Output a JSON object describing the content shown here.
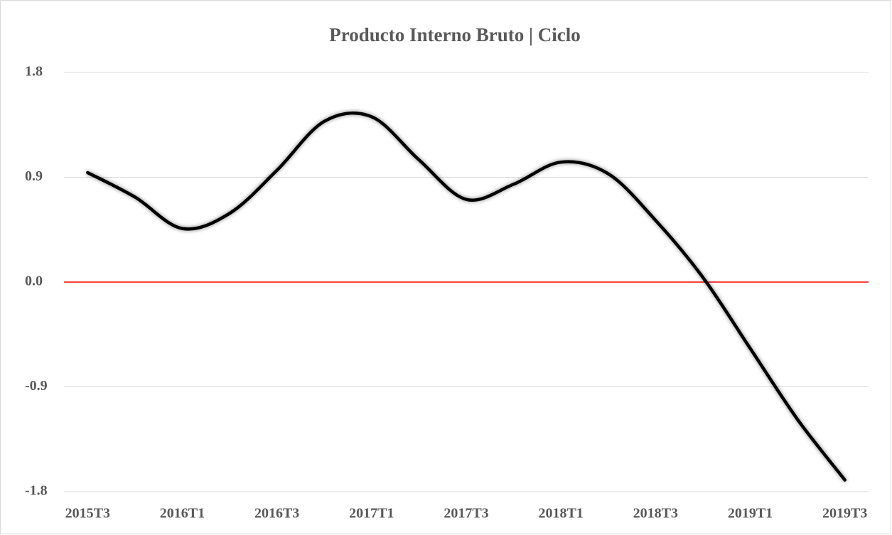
{
  "chart_data": {
    "type": "line",
    "title": "Producto Interno Bruto | Ciclo",
    "categories": [
      "2015T3",
      null,
      "2016T1",
      null,
      "2016T3",
      null,
      "2017T1",
      null,
      "2017T3",
      null,
      "2018T1",
      null,
      "2018T3",
      null,
      "2019T1",
      null,
      "2019T3"
    ],
    "series": [
      {
        "name": "Ciclo",
        "color": "#000000",
        "values": [
          0.94,
          0.73,
          0.46,
          0.59,
          0.96,
          1.38,
          1.42,
          1.05,
          0.71,
          0.84,
          1.03,
          0.93,
          0.53,
          0.04,
          -0.57,
          -1.18,
          -1.7
        ]
      }
    ],
    "ylim": [
      -1.8,
      1.8
    ],
    "yticks": [
      1.8,
      0.9,
      {
        "value": 0,
        "label": "0.0"
      },
      -0.9,
      -1.8
    ],
    "grid": true,
    "grid_color": "#d9d9d9",
    "zero_line_color": "#ff0000",
    "smooth": true
  }
}
